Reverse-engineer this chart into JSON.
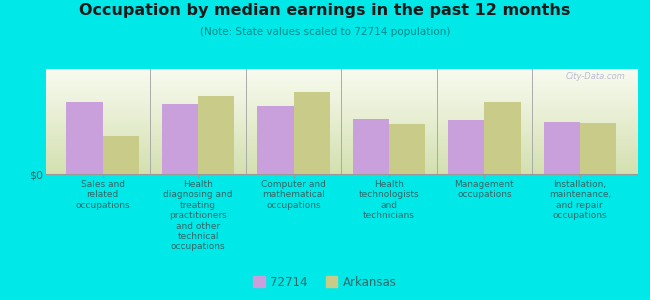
{
  "title": "Occupation by median earnings in the past 12 months",
  "subtitle": "(Note: State values scaled to 72714 population)",
  "background_color": "#00e8e8",
  "plot_bg_bottom": "#d4e0b0",
  "plot_bg_top": "#f8fbf0",
  "categories": [
    "Sales and\nrelated\noccupations",
    "Health\ndiagnosing and\ntreating\npractitioners\nand other\ntechnical\noccupations",
    "Computer and\nmathematical\noccupations",
    "Health\ntechnologists\nand\ntechnicians",
    "Management\noccupations",
    "Installation,\nmaintenance,\nand repair\noccupations"
  ],
  "values_72714": [
    0.72,
    0.7,
    0.68,
    0.55,
    0.54,
    0.52
  ],
  "values_arkansas": [
    0.38,
    0.78,
    0.82,
    0.5,
    0.72,
    0.51
  ],
  "color_72714": "#c9a0dc",
  "color_arkansas": "#c8cc88",
  "ylabel": "$0",
  "legend_72714": "72714",
  "legend_arkansas": "Arkansas",
  "bar_width": 0.38,
  "watermark": "City-Data.com",
  "title_color": "#1a1a1a",
  "subtitle_color": "#008888",
  "label_color": "#336666"
}
